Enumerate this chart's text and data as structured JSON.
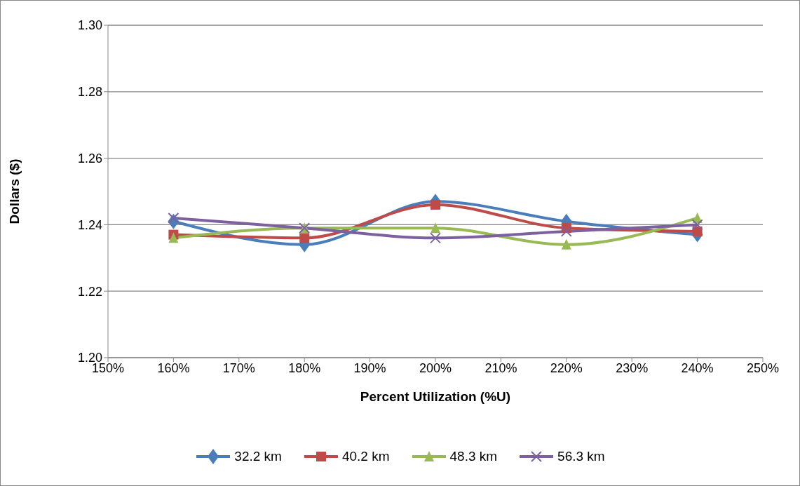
{
  "chart_data": {
    "type": "line",
    "xlabel": "Percent Utilization (%U)",
    "ylabel": "Dollars ($)",
    "x": [
      160,
      180,
      200,
      220,
      240
    ],
    "xlim": [
      150,
      250
    ],
    "xticks": [
      {
        "value": 150,
        "label": "150%"
      },
      {
        "value": 160,
        "label": "160%"
      },
      {
        "value": 170,
        "label": "170%"
      },
      {
        "value": 180,
        "label": "180%"
      },
      {
        "value": 190,
        "label": "190%"
      },
      {
        "value": 200,
        "label": "200%"
      },
      {
        "value": 210,
        "label": "210%"
      },
      {
        "value": 220,
        "label": "220%"
      },
      {
        "value": 230,
        "label": "230%"
      },
      {
        "value": 240,
        "label": "240%"
      },
      {
        "value": 250,
        "label": "250%"
      }
    ],
    "ylim": [
      1.2,
      1.3
    ],
    "yticks": [
      {
        "value": 1.2,
        "label": "1.20"
      },
      {
        "value": 1.22,
        "label": "1.22"
      },
      {
        "value": 1.24,
        "label": "1.24"
      },
      {
        "value": 1.26,
        "label": "1.26"
      },
      {
        "value": 1.28,
        "label": "1.28"
      },
      {
        "value": 1.3,
        "label": "1.30"
      }
    ],
    "grid": "y",
    "legend": "bottom",
    "line_style": "solid",
    "series": [
      {
        "name": "32.2 km",
        "color": "#4a7ebb",
        "marker": "diamond",
        "values": [
          1.241,
          1.234,
          1.247,
          1.241,
          1.237
        ]
      },
      {
        "name": "40.2 km",
        "color": "#be4b48",
        "marker": "square",
        "values": [
          1.237,
          1.236,
          1.246,
          1.239,
          1.238
        ]
      },
      {
        "name": "48.3 km",
        "color": "#98b954",
        "marker": "triangle",
        "values": [
          1.236,
          1.239,
          1.239,
          1.234,
          1.242
        ]
      },
      {
        "name": "56.3 km",
        "color": "#7d60a0",
        "marker": "cross",
        "values": [
          1.242,
          1.239,
          1.236,
          1.238,
          1.24
        ]
      }
    ]
  }
}
